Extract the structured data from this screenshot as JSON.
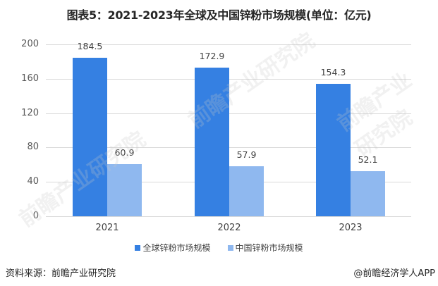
{
  "title": "图表5：2021-2023年全球及中国锌粉市场规模(单位：亿元)",
  "colors": {
    "global": "#3580e2",
    "china": "#8fb8ef",
    "grid": "#d9d9d9"
  },
  "legend": [
    {
      "label": "全球锌粉市场规模",
      "color": "#3580e2"
    },
    {
      "label": "中国锌粉市场规模",
      "color": "#8fb8ef"
    }
  ],
  "y_ticks": [
    "0",
    "40",
    "80",
    "120",
    "160",
    "200"
  ],
  "x_ticks": [
    "2021",
    "2022",
    "2023"
  ],
  "bar_labels": {
    "global": [
      "184.5",
      "172.9",
      "154.3"
    ],
    "china": [
      "60.9",
      "57.9",
      "52.1"
    ]
  },
  "footer": {
    "source": "资料来源：前瞻产业研究院",
    "credit": "@前瞻经济学人APP"
  },
  "watermark": "前瞻产业研究院",
  "chart_data": {
    "type": "bar",
    "title": "图表5：2021-2023年全球及中国锌粉市场规模(单位：亿元)",
    "categories": [
      "2021",
      "2022",
      "2023"
    ],
    "series": [
      {
        "name": "全球锌粉市场规模",
        "values": [
          184.5,
          172.9,
          154.3
        ],
        "color": "#3580e2"
      },
      {
        "name": "中国锌粉市场规模",
        "values": [
          60.9,
          57.9,
          52.1
        ],
        "color": "#8fb8ef"
      }
    ],
    "xlabel": "",
    "ylabel": "",
    "ylim": [
      0,
      200
    ],
    "yticks": [
      0,
      40,
      80,
      120,
      160,
      200
    ],
    "grid": true,
    "legend_position": "bottom",
    "data_labels": true
  }
}
